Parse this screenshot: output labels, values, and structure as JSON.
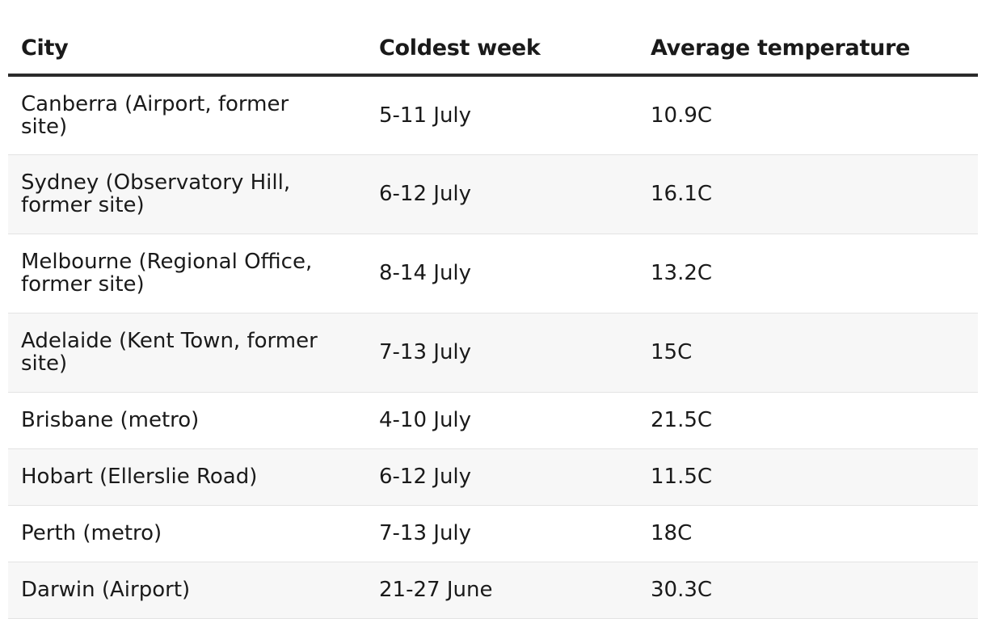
{
  "table": {
    "headers": [
      "City",
      "Coldest week",
      "Average temperature"
    ],
    "rows": [
      {
        "city": "Canberra (Airport, former site)",
        "week": "5-11 July",
        "temp": "10.9C"
      },
      {
        "city": "Sydney (Observatory Hill, former site)",
        "week": "6-12 July",
        "temp": "16.1C"
      },
      {
        "city": "Melbourne (Regional Office, former site)",
        "week": "8-14 July",
        "temp": "13.2C"
      },
      {
        "city": "Adelaide (Kent Town, former site)",
        "week": "7-13 July",
        "temp": "15C"
      },
      {
        "city": "Brisbane (metro)",
        "week": "4-10 July",
        "temp": "21.5C"
      },
      {
        "city": "Hobart (Ellerslie Road)",
        "week": "6-12 July",
        "temp": "11.5C"
      },
      {
        "city": "Perth (metro)",
        "week": "7-13 July",
        "temp": "18C"
      },
      {
        "city": "Darwin (Airport)",
        "week": "21-27 June",
        "temp": "30.3C"
      }
    ]
  }
}
